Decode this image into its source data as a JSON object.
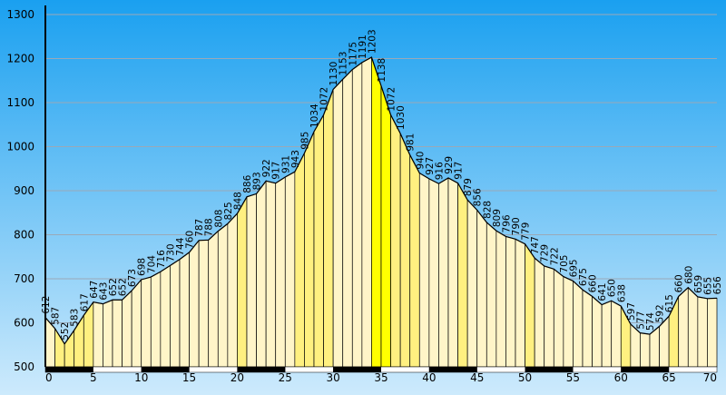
{
  "colors": {
    "bg_top": "#1aa0f0",
    "bg_bottom": "#cdeafc",
    "bar_light": "#fff5c8",
    "bar_medium": "#fff080",
    "bar_strong": "#ffff00",
    "axis": "#000000",
    "grid": "#9aa9b8"
  },
  "chart_data": {
    "type": "area",
    "title": "",
    "xlabel": "",
    "ylabel": "",
    "xlim": [
      0,
      70
    ],
    "ylim": [
      500,
      1300
    ],
    "x_ticks": [
      "0",
      "5",
      "10",
      "15",
      "20",
      "25",
      "30",
      "35",
      "40",
      "45",
      "50",
      "55",
      "60",
      "65",
      "70"
    ],
    "y_ticks": [
      "500",
      "600",
      "700",
      "800",
      "900",
      "1000",
      "1100",
      "1200",
      "1300"
    ],
    "grid": true,
    "x_axis_band": "alternating black segments every 5 units",
    "elevation": [
      612,
      587,
      552,
      583,
      617,
      647,
      643,
      652,
      652,
      673,
      698,
      704,
      716,
      730,
      744,
      760,
      787,
      788,
      808,
      825,
      848,
      886,
      893,
      922,
      917,
      931,
      943,
      985,
      1034,
      1072,
      1130,
      1153,
      1175,
      1191,
      1203,
      1138,
      1072,
      1030,
      981,
      940,
      927,
      916,
      929,
      917,
      879,
      856,
      828,
      809,
      796,
      790,
      779,
      747,
      729,
      722,
      705,
      695,
      675,
      660,
      641,
      650,
      638,
      597,
      577,
      574,
      592,
      615,
      660,
      680,
      659,
      655,
      656
    ],
    "labels": [
      "612",
      "587",
      "552",
      "583",
      "617",
      "647",
      "643",
      "652",
      "652",
      "673",
      "698",
      "704",
      "716",
      "730",
      "744",
      "760",
      "787",
      "788",
      "808",
      "825",
      "848",
      "886",
      "893",
      "922",
      "917",
      "931",
      "943",
      "985",
      "1034",
      "1072",
      "1130",
      "1153",
      "1175",
      "1191",
      "1203",
      "1138",
      "1072",
      "1030",
      "981",
      "940",
      "927",
      "916",
      "929",
      "917",
      "879",
      "856",
      "828",
      "809",
      "796",
      "790",
      "779",
      "747",
      "729",
      "722",
      "705",
      "695",
      "675",
      "660",
      "641",
      "650",
      "638",
      "597",
      "577",
      "574",
      "592",
      "615",
      "660",
      "680",
      "659",
      "655",
      "656"
    ]
  }
}
